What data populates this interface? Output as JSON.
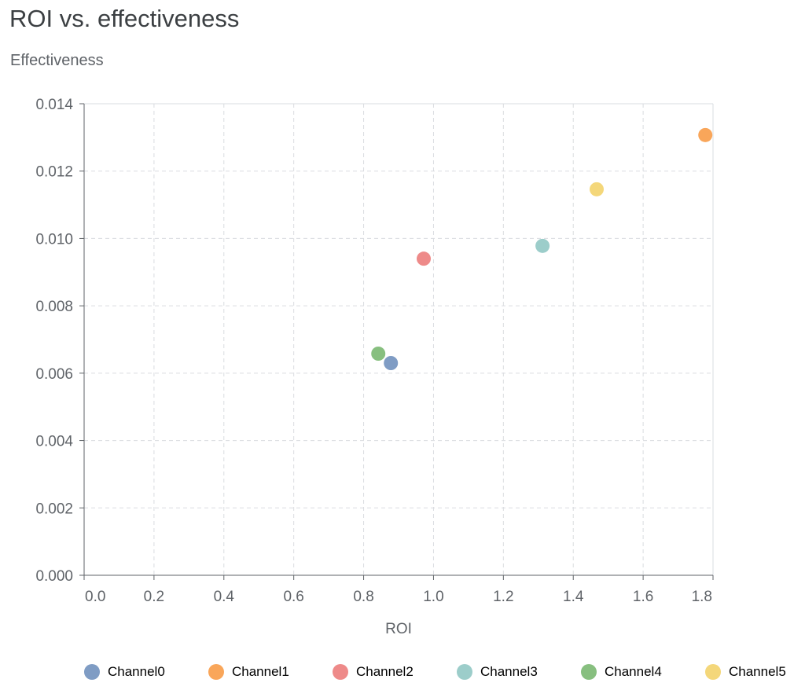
{
  "title": "ROI vs. effectiveness",
  "chart_data": {
    "type": "scatter",
    "title": "ROI vs. effectiveness",
    "xlabel": "ROI",
    "ylabel": "Effectiveness",
    "xlim": [
      0,
      1.8
    ],
    "ylim": [
      0,
      0.014
    ],
    "xticks": [
      "0.0",
      "0.2",
      "0.4",
      "0.6",
      "0.8",
      "1.0",
      "1.2",
      "1.4",
      "1.6",
      "1.8"
    ],
    "yticks": [
      "0.000",
      "0.002",
      "0.004",
      "0.006",
      "0.008",
      "0.010",
      "0.012",
      "0.014"
    ],
    "grid": true,
    "legend_position": "bottom",
    "series": [
      {
        "name": "Channel0",
        "color": "#7f9cc4",
        "x": 0.878,
        "y": 0.0063
      },
      {
        "name": "Channel1",
        "color": "#f9a65a",
        "x": 1.778,
        "y": 0.01307
      },
      {
        "name": "Channel2",
        "color": "#ee8a89",
        "x": 0.972,
        "y": 0.0094
      },
      {
        "name": "Channel3",
        "color": "#9ccdca",
        "x": 1.312,
        "y": 0.00978
      },
      {
        "name": "Channel4",
        "color": "#87bf7f",
        "x": 0.842,
        "y": 0.00658
      },
      {
        "name": "Channel5",
        "color": "#f4d77a",
        "x": 1.467,
        "y": 0.01146
      }
    ]
  }
}
